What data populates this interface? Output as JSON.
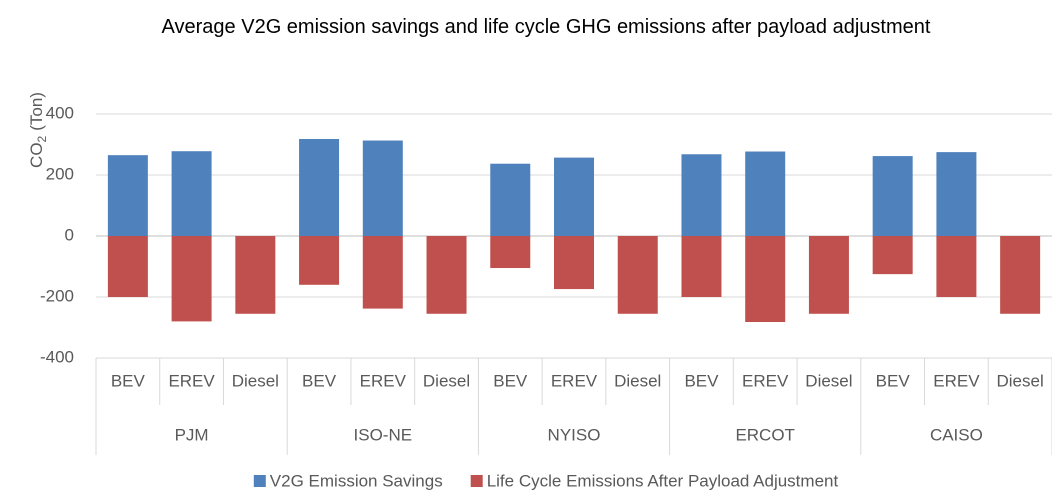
{
  "chart_data": {
    "type": "bar",
    "title": "Average V2G emission savings and life cycle GHG emissions after payload adjustment",
    "y_label": {
      "text": "CO",
      "subscript": "2",
      "suffix": "(Ton)"
    },
    "groups": [
      "PJM",
      "ISO-NE",
      "NYISO",
      "ERCOT",
      "CAISO"
    ],
    "categories": [
      "BEV",
      "EREV",
      "Diesel",
      "BEV",
      "EREV",
      "Diesel",
      "BEV",
      "EREV",
      "Diesel",
      "BEV",
      "EREV",
      "Diesel",
      "BEV",
      "EREV",
      "Diesel"
    ],
    "series": [
      {
        "name": "V2G Emission Savings",
        "color": "#4f81bd",
        "values": [
          265,
          278,
          null,
          318,
          313,
          null,
          237,
          257,
          null,
          268,
          277,
          null,
          262,
          275,
          null
        ]
      },
      {
        "name": "Life Cycle Emissions After Payload Adjustment",
        "color": "#c0504d",
        "values": [
          -200,
          -280,
          -255,
          -160,
          -238,
          -255,
          -105,
          -174,
          -255,
          -200,
          -282,
          -255,
          -125,
          -200,
          -255
        ]
      }
    ],
    "ylim": [
      -400,
      400
    ],
    "yticks": [
      -400,
      -200,
      0,
      200,
      400
    ],
    "grid": true,
    "legend": "bottom"
  }
}
